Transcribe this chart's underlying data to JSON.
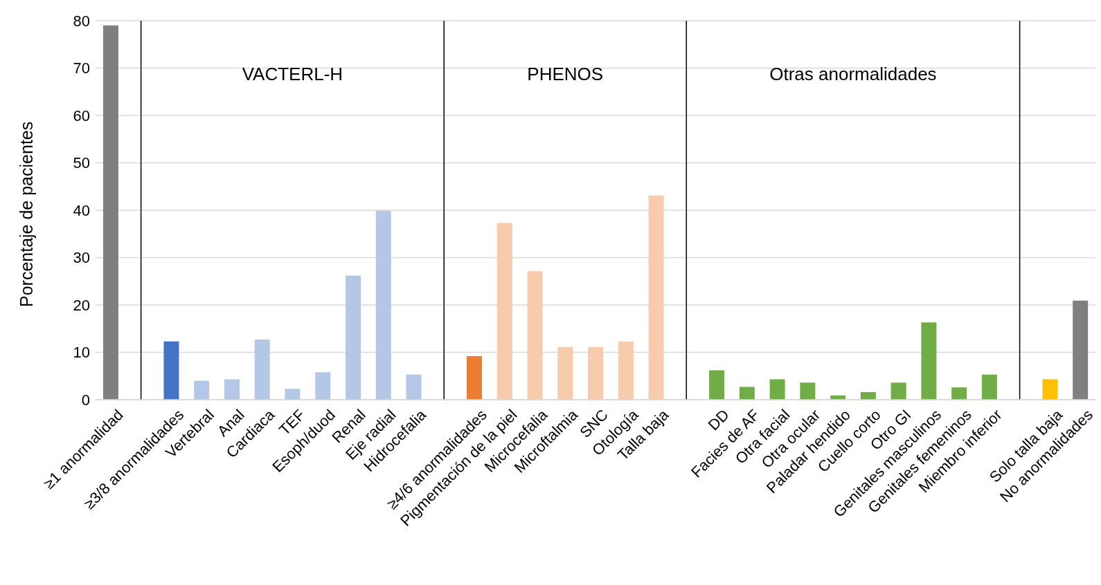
{
  "chart_data": {
    "type": "bar",
    "ylabel": "Porcentaje de pacientes",
    "categories": [
      "≥1 anormalidad",
      null,
      "≥3/8 anormalidades",
      "Vertebral",
      "Anal",
      "Cardiaca",
      "TEF",
      "Esoph/duod",
      "Renal",
      "Eje radial",
      "Hidrocefalia",
      null,
      "≥4/6 anormalidades",
      "Pigmentación de la piel",
      "Microcefalia",
      "Microftalmia",
      "SNC",
      "Otología",
      "Talla baja",
      null,
      "DD",
      "Facies de AF",
      "Otra facial",
      "Otra ocular",
      "Paladar hendido",
      "Cuello corto",
      "Otro GI",
      "Genitales masculinos",
      "Genitales femeninos",
      "Miembro inferior",
      null,
      "Solo talla baja",
      "No anormalidades"
    ],
    "values": [
      79,
      null,
      12.3,
      4.0,
      4.3,
      12.7,
      2.3,
      5.8,
      26.2,
      39.9,
      5.3,
      null,
      9.2,
      37.3,
      27.1,
      11.1,
      11.1,
      12.3,
      43.1,
      null,
      6.2,
      2.7,
      4.3,
      3.6,
      0.9,
      1.6,
      3.6,
      16.3,
      2.6,
      5.3,
      null,
      4.3,
      20.9
    ],
    "colors": [
      "#7f7f7f",
      null,
      "#4472c4",
      "#b4c7e7",
      "#b4c7e7",
      "#b4c7e7",
      "#b4c7e7",
      "#b4c7e7",
      "#b4c7e7",
      "#b4c7e7",
      "#b4c7e7",
      null,
      "#ed7d31",
      "#f8cbad",
      "#f8cbad",
      "#f8cbad",
      "#f8cbad",
      "#f8cbad",
      "#f8cbad",
      null,
      "#70ad47",
      "#70ad47",
      "#70ad47",
      "#70ad47",
      "#70ad47",
      "#70ad47",
      "#70ad47",
      "#70ad47",
      "#70ad47",
      "#70ad47",
      null,
      "#ffc000",
      "#7f7f7f"
    ],
    "annotations": [
      "VACTERL-H",
      "PHENOS",
      "Otras anormalidades"
    ],
    "ylim": [
      0,
      80
    ],
    "yticks": [
      0,
      10,
      20,
      30,
      40,
      50,
      60,
      70,
      80
    ],
    "grid": "y",
    "legend": false
  }
}
